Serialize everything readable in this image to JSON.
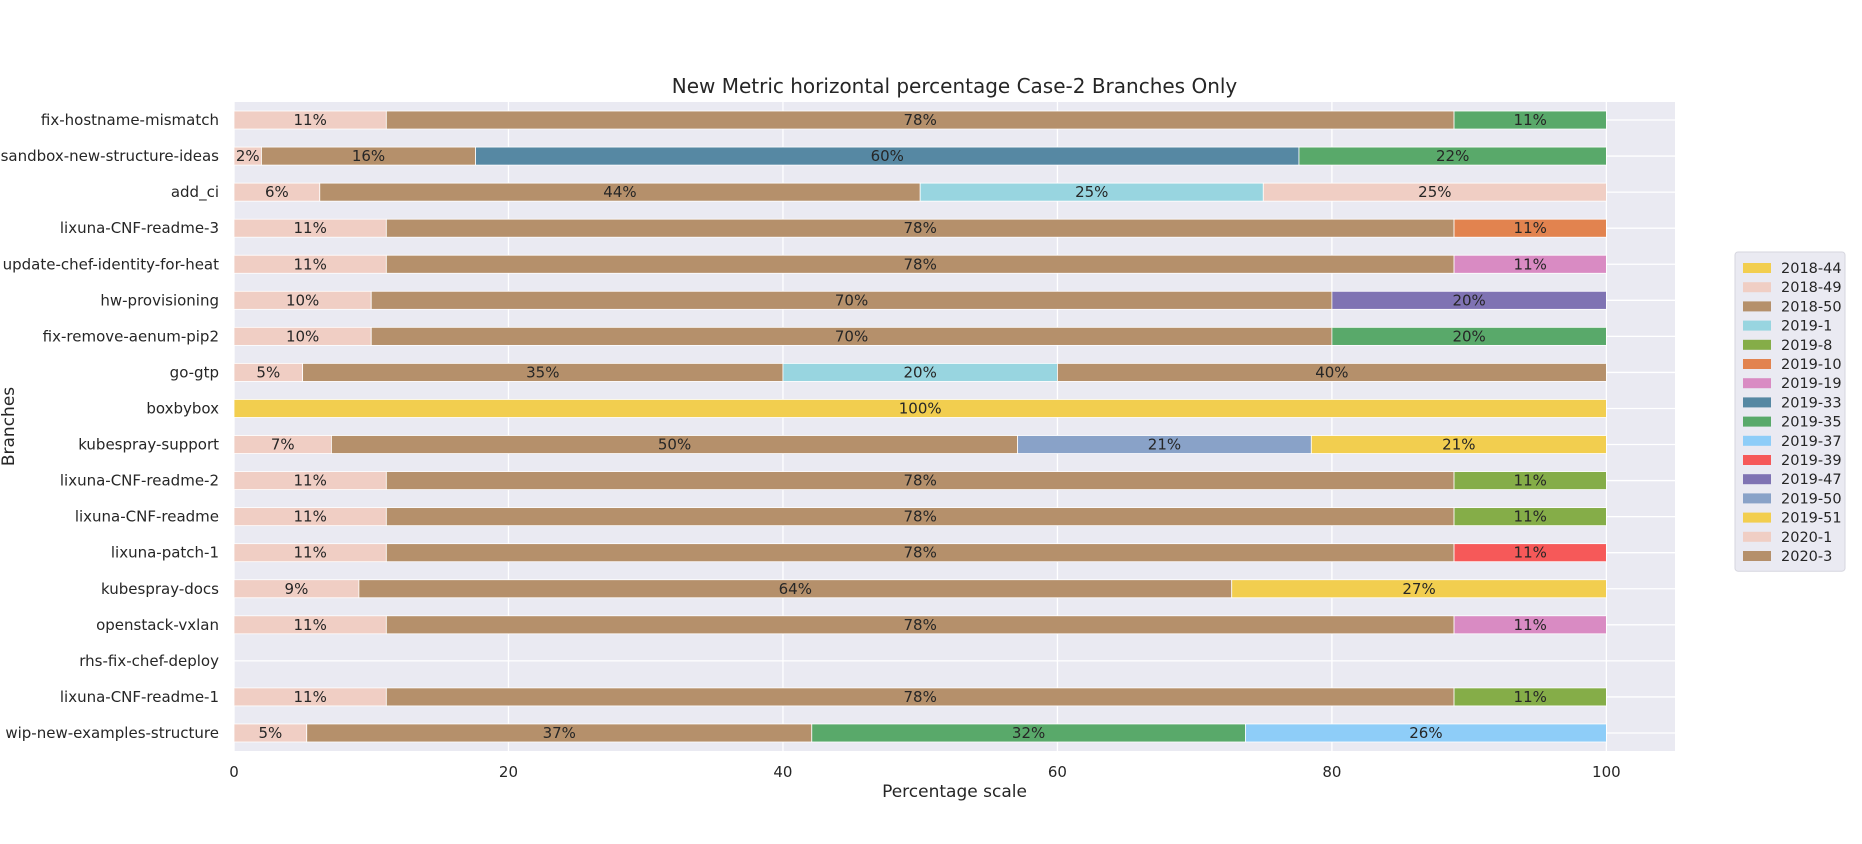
{
  "chart_data": {
    "type": "bar",
    "orientation": "horizontal",
    "stacked": true,
    "title": "New Metric horizontal percentage Case-2 Branches Only",
    "xlabel": "Percentage scale",
    "ylabel": "Branches",
    "xlim": [
      0,
      105
    ],
    "xticks": [
      0,
      20,
      40,
      60,
      80,
      100
    ],
    "grid": true,
    "legend_position": "right",
    "categories": [
      "fix-hostname-mismatch",
      "sandbox-new-structure-ideas",
      "add_ci",
      "lixuna-CNF-readme-3",
      "update-chef-identity-for-heat",
      "hw-provisioning",
      "fix-remove-aenum-pip2",
      "go-gtp",
      "boxbybox",
      "kubespray-support",
      "lixuna-CNF-readme-2",
      "lixuna-CNF-readme",
      "lixuna-patch-1",
      "kubespray-docs",
      "openstack-vxlan",
      "rhs-fix-chef-deploy",
      "lixuna-CNF-readme-1",
      "wip-new-examples-structure"
    ],
    "series": [
      {
        "name": "2018-44",
        "color": "#f2ce4f",
        "values": [
          0,
          0,
          0,
          0,
          0,
          0,
          0,
          0,
          100,
          0,
          0,
          0,
          0,
          0,
          0,
          0,
          0,
          0
        ]
      },
      {
        "name": "2018-49",
        "color": "#f0cec4",
        "values": [
          11.1,
          2,
          6.25,
          11.1,
          11.1,
          10,
          10,
          5,
          0,
          7.1,
          11.1,
          11.1,
          11.1,
          9.1,
          11.1,
          0,
          11.1,
          5.3
        ]
      },
      {
        "name": "2018-50",
        "color": "#b5906b",
        "values": [
          77.8,
          15.6,
          43.75,
          77.8,
          77.8,
          70,
          70,
          35,
          0,
          50,
          77.8,
          77.8,
          77.8,
          63.6,
          77.8,
          0,
          77.8,
          36.8
        ]
      },
      {
        "name": "2019-1",
        "color": "#98d5e0",
        "values": [
          0,
          0,
          25,
          0,
          0,
          0,
          0,
          20,
          0,
          0,
          0,
          0,
          0,
          0,
          0,
          0,
          0,
          0
        ]
      },
      {
        "name": "2019-8",
        "color": "#85ad48",
        "values": [
          0,
          0,
          0,
          0,
          0,
          0,
          0,
          0,
          0,
          0,
          11.1,
          11.1,
          0,
          0,
          0,
          0,
          11.1,
          0
        ]
      },
      {
        "name": "2019-10",
        "color": "#e2834f",
        "values": [
          0,
          0,
          0,
          11.1,
          0,
          0,
          0,
          0,
          0,
          0,
          0,
          0,
          0,
          0,
          0,
          0,
          0,
          0
        ]
      },
      {
        "name": "2019-19",
        "color": "#d98bc3",
        "values": [
          0,
          0,
          0,
          0,
          11.1,
          0,
          0,
          0,
          0,
          0,
          0,
          0,
          0,
          0,
          11.1,
          0,
          0,
          0
        ]
      },
      {
        "name": "2019-33",
        "color": "#5688a3",
        "values": [
          0,
          60,
          0,
          0,
          0,
          0,
          0,
          0,
          0,
          0,
          0,
          0,
          0,
          0,
          0,
          0,
          0,
          0
        ]
      },
      {
        "name": "2019-35",
        "color": "#59a96a",
        "values": [
          11.1,
          22.4,
          0,
          0,
          0,
          0,
          20,
          0,
          0,
          0,
          0,
          0,
          0,
          0,
          0,
          0,
          0,
          31.6
        ]
      },
      {
        "name": "2019-37",
        "color": "#8ecdf8",
        "values": [
          0,
          0,
          0,
          0,
          0,
          0,
          0,
          0,
          0,
          0,
          0,
          0,
          0,
          0,
          0,
          0,
          0,
          26.3
        ]
      },
      {
        "name": "2019-39",
        "color": "#f65959",
        "values": [
          0,
          0,
          0,
          0,
          0,
          0,
          0,
          0,
          0,
          0,
          0,
          0,
          11.1,
          0,
          0,
          0,
          0,
          0
        ]
      },
      {
        "name": "2019-47",
        "color": "#7f73b3",
        "values": [
          0,
          0,
          0,
          0,
          0,
          20,
          0,
          0,
          0,
          0,
          0,
          0,
          0,
          0,
          0,
          0,
          0,
          0
        ]
      },
      {
        "name": "2019-50",
        "color": "#89a2c8",
        "values": [
          0,
          0,
          0,
          0,
          0,
          0,
          0,
          0,
          0,
          21.4,
          0,
          0,
          0,
          0,
          0,
          0,
          0,
          0
        ]
      },
      {
        "name": "2019-51",
        "color": "#f2ce4f",
        "values": [
          0,
          0,
          0,
          0,
          0,
          0,
          0,
          0,
          0,
          21.5,
          0,
          0,
          0,
          27.3,
          0,
          0,
          0,
          0
        ]
      },
      {
        "name": "2020-1",
        "color": "#f0cec4",
        "values": [
          0,
          0,
          25,
          0,
          0,
          0,
          0,
          0,
          0,
          0,
          0,
          0,
          0,
          0,
          0,
          0,
          0,
          0
        ]
      },
      {
        "name": "2020-3",
        "color": "#b5906b",
        "values": [
          0,
          0,
          0,
          0,
          0,
          0,
          0,
          40,
          0,
          0,
          0,
          0,
          0,
          0,
          0,
          0,
          0,
          0
        ]
      }
    ],
    "bar_labels": [
      [
        "11%",
        "78%",
        "11%"
      ],
      [
        "2%",
        "16%",
        "60%",
        "22%"
      ],
      [
        "6%",
        "44%",
        "25%",
        "25%"
      ],
      [
        "11%",
        "78%",
        "11%"
      ],
      [
        "11%",
        "78%",
        "11%"
      ],
      [
        "10%",
        "70%",
        "20%"
      ],
      [
        "10%",
        "70%",
        "20%"
      ],
      [
        "5%",
        "35%",
        "20%",
        "40%"
      ],
      [
        "100%"
      ],
      [
        "7%",
        "50%",
        "21%",
        "21%"
      ],
      [
        "11%",
        "78%",
        "11%"
      ],
      [
        "11%",
        "78%",
        "11%"
      ],
      [
        "11%",
        "78%",
        "11%"
      ],
      [
        "9%",
        "64%",
        "27%"
      ],
      [
        "11%",
        "78%",
        "11%"
      ],
      [],
      [
        "11%",
        "78%",
        "11%"
      ],
      [
        "5%",
        "37%",
        "32%",
        "26%"
      ]
    ]
  }
}
